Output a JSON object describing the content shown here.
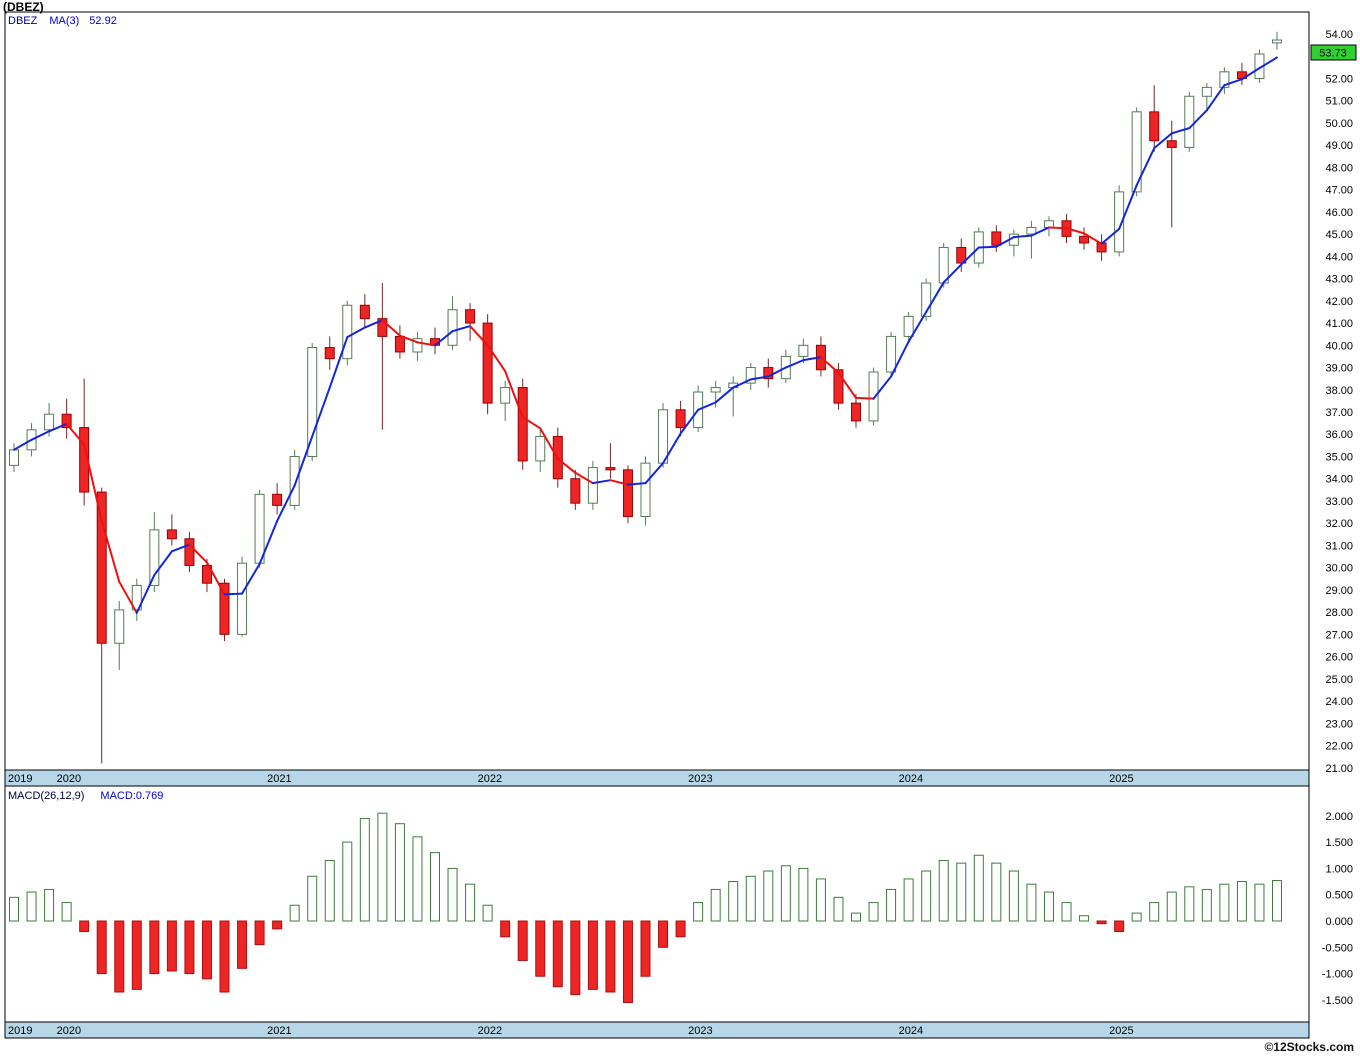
{
  "title": "(DBEZ)",
  "legend": {
    "symbol": "DBEZ",
    "ma_label": "MA(3)",
    "ma_value": "52.92"
  },
  "macd_legend": {
    "label": "MACD(26,12,9)",
    "value": "MACD:0.769"
  },
  "watermark": "©12Stocks.com",
  "current_price": "53.73",
  "colors": {
    "up_stroke": "#567a56",
    "up_fill": "#ffffff",
    "down_fill": "#ee2525",
    "down_stroke": "#990000",
    "down_wick": "#7a2525",
    "ma_up": "#1226dd",
    "ma_down": "#ee1111",
    "band_bg": "#b7d7e8",
    "panel_border": "#000000",
    "price_tag_bg": "#30d030",
    "macd_pos_stroke": "#3f7a3f",
    "macd_pos_fill": "#ffffff",
    "macd_neg_fill": "#ee2525",
    "macd_neg_stroke": "#aa1111"
  },
  "price_axis": {
    "min": 21,
    "max": 54,
    "step": 1,
    "hidden_labels": [
      53
    ]
  },
  "macd_axis": {
    "labels": [
      "2.000",
      "1.500",
      "1.000",
      "0.500",
      "0.000",
      "-0.500",
      "-1.000",
      "-1.500"
    ]
  },
  "years": [
    {
      "label": "2019",
      "index": 0
    },
    {
      "label": "2020",
      "index": 3
    },
    {
      "label": "2021",
      "index": 15
    },
    {
      "label": "2022",
      "index": 27
    },
    {
      "label": "2023",
      "index": 39
    },
    {
      "label": "2024",
      "index": 51
    },
    {
      "label": "2025",
      "index": 63
    }
  ],
  "chart_data": {
    "type": "candlestick+macd-histogram",
    "symbol": "DBEZ",
    "interval": "monthly",
    "ma_period": 3,
    "ma_final": 52.92,
    "macd_params": [
      26,
      12,
      9
    ],
    "macd_final": 0.769,
    "last_close": 53.73,
    "price_ylim": [
      21,
      54.9
    ],
    "macd_ylim": [
      -1.75,
      2.3
    ],
    "dates": [
      "2019-10",
      "2019-11",
      "2019-12",
      "2020-01",
      "2020-02",
      "2020-03",
      "2020-04",
      "2020-05",
      "2020-06",
      "2020-07",
      "2020-08",
      "2020-09",
      "2020-10",
      "2020-11",
      "2020-12",
      "2021-01",
      "2021-02",
      "2021-03",
      "2021-04",
      "2021-05",
      "2021-06",
      "2021-07",
      "2021-08",
      "2021-09",
      "2021-10",
      "2021-11",
      "2021-12",
      "2022-01",
      "2022-02",
      "2022-03",
      "2022-04",
      "2022-05",
      "2022-06",
      "2022-07",
      "2022-08",
      "2022-09",
      "2022-10",
      "2022-11",
      "2022-12",
      "2023-01",
      "2023-02",
      "2023-03",
      "2023-04",
      "2023-05",
      "2023-06",
      "2023-07",
      "2023-08",
      "2023-09",
      "2023-10",
      "2023-11",
      "2023-12",
      "2024-01",
      "2024-02",
      "2024-03",
      "2024-04",
      "2024-05",
      "2024-06",
      "2024-07",
      "2024-08",
      "2024-09",
      "2024-10",
      "2024-11",
      "2024-12",
      "2025-01",
      "2025-02",
      "2025-03",
      "2025-04",
      "2025-05",
      "2025-06",
      "2025-07",
      "2025-08",
      "2025-09",
      "2025-10"
    ],
    "ohlc": [
      [
        34.6,
        35.6,
        34.3,
        35.3
      ],
      [
        35.3,
        36.5,
        35.0,
        36.2
      ],
      [
        36.2,
        37.4,
        35.9,
        36.9
      ],
      [
        36.9,
        37.6,
        35.8,
        36.3
      ],
      [
        36.3,
        38.5,
        32.8,
        33.4
      ],
      [
        33.4,
        33.6,
        21.2,
        26.6
      ],
      [
        26.6,
        28.5,
        25.4,
        28.1
      ],
      [
        28.1,
        29.5,
        27.6,
        29.2
      ],
      [
        29.2,
        32.5,
        28.9,
        31.7
      ],
      [
        31.7,
        32.4,
        31.0,
        31.3
      ],
      [
        31.3,
        31.6,
        29.8,
        30.1
      ],
      [
        30.1,
        30.4,
        28.9,
        29.3
      ],
      [
        29.3,
        29.5,
        26.7,
        27.0
      ],
      [
        27.0,
        30.5,
        26.9,
        30.2
      ],
      [
        30.2,
        33.5,
        30.0,
        33.3
      ],
      [
        33.3,
        33.8,
        32.4,
        32.8
      ],
      [
        32.8,
        35.3,
        32.6,
        35.0
      ],
      [
        35.0,
        40.1,
        34.8,
        39.9
      ],
      [
        39.9,
        40.4,
        38.9,
        39.4
      ],
      [
        39.4,
        42.0,
        39.1,
        41.8
      ],
      [
        41.8,
        42.3,
        40.8,
        41.2
      ],
      [
        41.2,
        42.8,
        36.2,
        40.4
      ],
      [
        40.4,
        40.9,
        39.4,
        39.7
      ],
      [
        39.7,
        40.6,
        39.3,
        40.3
      ],
      [
        40.3,
        40.8,
        39.6,
        40.0
      ],
      [
        40.0,
        42.2,
        39.8,
        41.6
      ],
      [
        41.6,
        41.9,
        40.2,
        41.0
      ],
      [
        41.0,
        41.4,
        36.9,
        37.4
      ],
      [
        37.4,
        38.4,
        36.6,
        38.1
      ],
      [
        38.1,
        38.5,
        34.4,
        34.8
      ],
      [
        34.8,
        36.2,
        34.3,
        35.9
      ],
      [
        35.9,
        36.3,
        33.6,
        34.0
      ],
      [
        34.0,
        34.4,
        32.6,
        32.9
      ],
      [
        32.9,
        34.8,
        32.6,
        34.5
      ],
      [
        34.5,
        35.6,
        34.0,
        34.4
      ],
      [
        34.4,
        34.6,
        32.0,
        32.3
      ],
      [
        32.3,
        35.0,
        31.9,
        34.7
      ],
      [
        34.7,
        37.4,
        34.5,
        37.1
      ],
      [
        37.1,
        37.5,
        35.9,
        36.3
      ],
      [
        36.3,
        38.2,
        36.1,
        37.9
      ],
      [
        37.9,
        38.4,
        37.2,
        38.1
      ],
      [
        38.1,
        38.6,
        36.8,
        38.3
      ],
      [
        38.3,
        39.2,
        38.0,
        39.0
      ],
      [
        39.0,
        39.4,
        38.1,
        38.5
      ],
      [
        38.5,
        39.8,
        38.3,
        39.5
      ],
      [
        39.5,
        40.3,
        39.2,
        40.0
      ],
      [
        40.0,
        40.4,
        38.6,
        38.9
      ],
      [
        38.9,
        39.2,
        37.1,
        37.4
      ],
      [
        37.4,
        37.8,
        36.3,
        36.6
      ],
      [
        36.6,
        39.0,
        36.4,
        38.8
      ],
      [
        38.8,
        40.6,
        38.6,
        40.4
      ],
      [
        40.4,
        41.5,
        40.1,
        41.3
      ],
      [
        41.3,
        43.0,
        41.1,
        42.8
      ],
      [
        42.8,
        44.6,
        42.6,
        44.4
      ],
      [
        44.4,
        44.8,
        43.3,
        43.7
      ],
      [
        43.7,
        45.3,
        43.5,
        45.1
      ],
      [
        45.1,
        45.4,
        44.2,
        44.5
      ],
      [
        44.5,
        45.2,
        44.0,
        45.0
      ],
      [
        45.0,
        45.6,
        43.9,
        45.3
      ],
      [
        45.3,
        45.8,
        44.9,
        45.6
      ],
      [
        45.6,
        45.9,
        44.6,
        44.9
      ],
      [
        44.9,
        45.3,
        44.3,
        44.6
      ],
      [
        44.6,
        45.0,
        43.8,
        44.2
      ],
      [
        44.2,
        47.2,
        44.0,
        46.9
      ],
      [
        46.9,
        50.7,
        46.7,
        50.5
      ],
      [
        50.5,
        51.7,
        48.7,
        49.2
      ],
      [
        49.2,
        50.1,
        45.3,
        48.9
      ],
      [
        48.9,
        51.4,
        48.7,
        51.2
      ],
      [
        51.2,
        51.8,
        50.6,
        51.6
      ],
      [
        51.6,
        52.5,
        51.3,
        52.3
      ],
      [
        52.3,
        52.7,
        51.7,
        52.0
      ],
      [
        52.0,
        53.3,
        51.8,
        53.1
      ],
      [
        53.6,
        54.1,
        53.3,
        53.73
      ]
    ],
    "macd_histogram": [
      0.45,
      0.55,
      0.6,
      0.35,
      -0.2,
      -1.0,
      -1.35,
      -1.3,
      -1.0,
      -0.95,
      -1.0,
      -1.1,
      -1.35,
      -0.9,
      -0.45,
      -0.15,
      0.3,
      0.85,
      1.15,
      1.5,
      1.95,
      2.05,
      1.85,
      1.6,
      1.3,
      1.0,
      0.7,
      0.3,
      -0.3,
      -0.75,
      -1.05,
      -1.25,
      -1.4,
      -1.3,
      -1.35,
      -1.55,
      -1.05,
      -0.5,
      -0.3,
      0.35,
      0.6,
      0.75,
      0.85,
      0.95,
      1.05,
      1.0,
      0.8,
      0.45,
      0.15,
      0.35,
      0.6,
      0.8,
      0.95,
      1.15,
      1.1,
      1.25,
      1.1,
      0.95,
      0.7,
      0.55,
      0.35,
      0.1,
      -0.05,
      -0.2,
      0.15,
      0.35,
      0.55,
      0.65,
      0.6,
      0.7,
      0.75,
      0.7,
      0.769
    ]
  }
}
